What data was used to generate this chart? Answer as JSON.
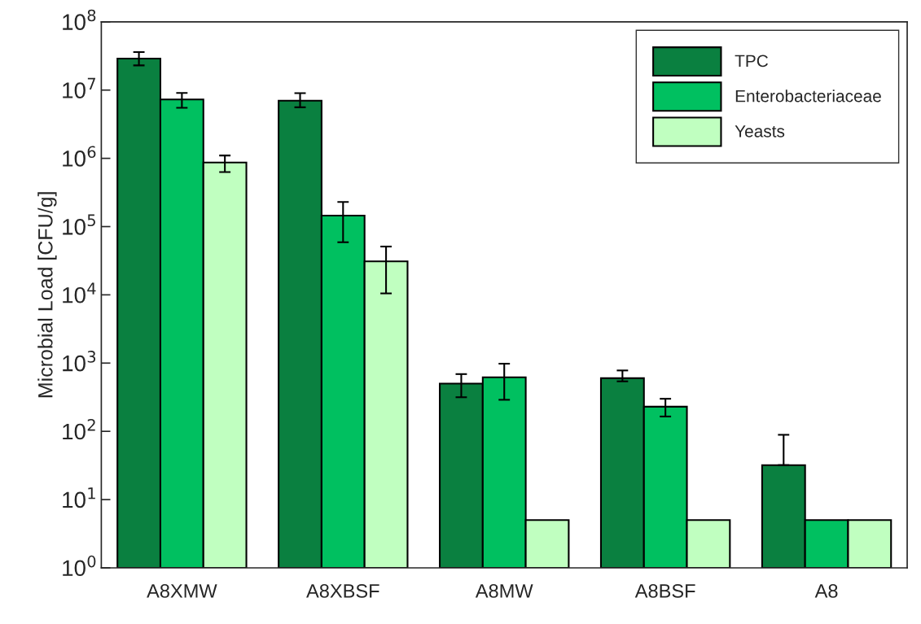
{
  "chart_data": {
    "type": "bar",
    "ylabel": "Microbial Load [CFU/g]",
    "categories": [
      "A8XMW",
      "A8XBSF",
      "A8MW",
      "A8BSF",
      "A8"
    ],
    "series": [
      {
        "name": "TPC",
        "color": "#0a8040",
        "values": [
          29000000,
          7000000,
          500,
          600,
          32
        ],
        "errors": [
          [
            23000000,
            36000000
          ],
          [
            5600000,
            9000000
          ],
          [
            316,
            690
          ],
          [
            540,
            780
          ],
          [
            32,
            89
          ]
        ]
      },
      {
        "name": "Enterobacteriaceae",
        "color": "#00c060",
        "values": [
          7300000,
          145000,
          620,
          230,
          5
        ],
        "errors": [
          [
            5500000,
            9100000
          ],
          [
            59000,
            230000
          ],
          [
            290,
            980
          ],
          [
            165,
            300
          ],
          null
        ]
      },
      {
        "name": "Yeasts",
        "color": "#c0ffc0",
        "values": [
          870000,
          31000,
          5,
          5,
          5
        ],
        "errors": [
          [
            630000,
            1100000
          ],
          [
            10500,
            51000
          ],
          null,
          null,
          null
        ]
      }
    ],
    "log": "y",
    "ylim": [
      1,
      100000000
    ],
    "yticks": [
      {
        "value": 1,
        "label": "10$^{0}$"
      },
      {
        "value": 10,
        "label": "10$^{1}$"
      },
      {
        "value": 100,
        "label": "10$^{2}$"
      },
      {
        "value": 1000,
        "label": "10$^{3}$"
      },
      {
        "value": 10000,
        "label": "10$^{4}$"
      },
      {
        "value": 100000,
        "label": "10$^{5}$"
      },
      {
        "value": 1000000,
        "label": "10$^{6}$"
      },
      {
        "value": 10000000,
        "label": "10$^{7}$"
      },
      {
        "value": 100000000,
        "label": "10$^{8}$"
      }
    ],
    "grid": false,
    "legend": "top right"
  }
}
